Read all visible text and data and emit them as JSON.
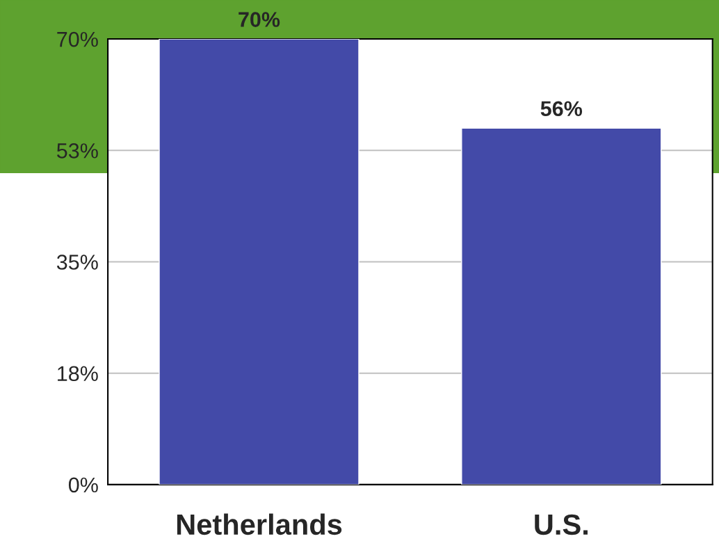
{
  "chart_data": {
    "type": "bar",
    "categories": [
      "Netherlands",
      "U.S."
    ],
    "values": [
      70,
      56
    ],
    "color": "#434aa8",
    "value_labels": [
      "70%",
      "56%"
    ],
    "ylim": [
      0,
      70
    ],
    "yticks": [
      {
        "value": 0,
        "label": "0%"
      },
      {
        "value": 17.5,
        "label": "18%"
      },
      {
        "value": 35,
        "label": "35%"
      },
      {
        "value": 52.5,
        "label": "53%"
      },
      {
        "value": 70,
        "label": "70%"
      }
    ],
    "grid": "y"
  }
}
